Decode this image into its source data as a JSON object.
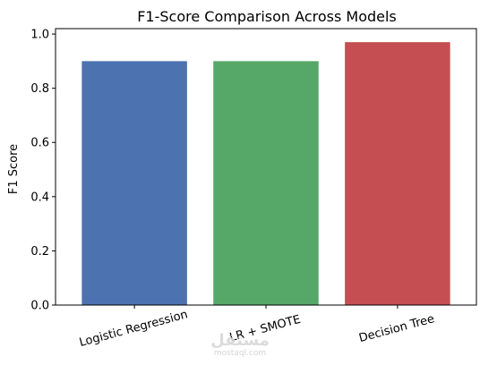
{
  "chart_data": {
    "type": "bar",
    "title": "F1-Score Comparison Across Models",
    "xlabel": "",
    "ylabel": "F1 Score",
    "categories": [
      "Logistic Regression",
      "LR + SMOTE",
      "Decision Tree"
    ],
    "values": [
      0.9,
      0.9,
      0.97
    ],
    "colors": [
      "#4C72B0",
      "#55A868",
      "#C44E52"
    ],
    "ylim": [
      0,
      1.02
    ],
    "yticks": [
      0.0,
      0.2,
      0.4,
      0.6,
      0.8,
      1.0
    ],
    "ytick_labels": [
      "0.0",
      "0.2",
      "0.4",
      "0.6",
      "0.8",
      "1.0"
    ],
    "grid": false,
    "legend": "none"
  },
  "watermark": {
    "main": "مستقل",
    "sub": "mostaql.com"
  }
}
